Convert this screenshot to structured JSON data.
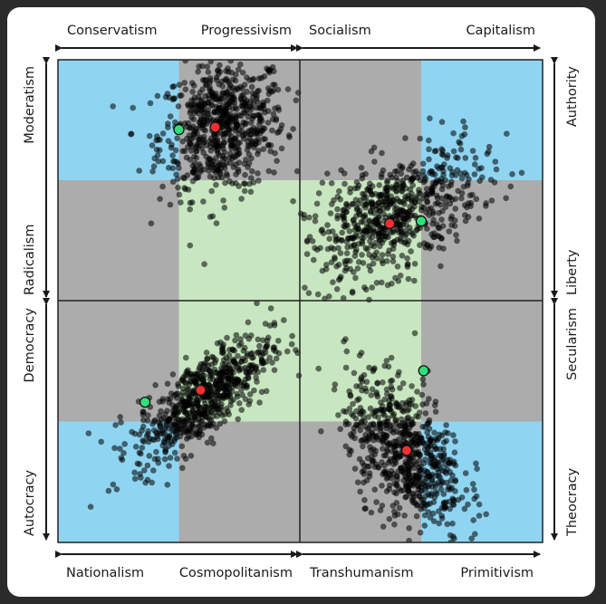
{
  "chart_data": {
    "type": "scatter",
    "title": "",
    "axes": {
      "top_left": [
        "Conservatism",
        "Progressivism"
      ],
      "top_right": [
        "Socialism",
        "Capitalism"
      ],
      "bottom_left": [
        "Nationalism",
        "Cosmopolitanism"
      ],
      "bottom_right": [
        "Transhumanism",
        "Primitivism"
      ],
      "left_top": [
        "Moderatism",
        "Radicalism"
      ],
      "left_bottom": [
        "Democracy",
        "Autocracy"
      ],
      "right_top": [
        "Authority",
        "Liberty"
      ],
      "right_bottom": [
        "Secularism",
        "Theocracy"
      ]
    },
    "domain": [
      0,
      1
    ],
    "grid": "quadrants split at 0.5; inner thirds shaded",
    "colors": {
      "blue": "#8fd5f2",
      "gray": "#acacac",
      "green": "#c8e6c0",
      "point": "#000000",
      "red": "#ef3030",
      "lime": "#2fe07a"
    },
    "panels": [
      {
        "name": "Conservatism–Progressivism vs Moderatism–Radicalism",
        "series": "points",
        "n_points": 700,
        "mean": [
          0.68,
          0.72
        ],
        "spread": [
          0.13,
          0.14
        ],
        "red_point": [
          0.65,
          0.72
        ],
        "green_point": [
          0.5,
          0.71
        ]
      },
      {
        "name": "Socialism–Capitalism vs Authority–Liberty",
        "series": "points",
        "n_points": 700,
        "mean": [
          0.38,
          0.35
        ],
        "spread": [
          0.18,
          0.14
        ],
        "red_point": [
          0.37,
          0.32
        ],
        "green_point": [
          0.5,
          0.33
        ]
      },
      {
        "name": "Nationalism–Cosmopolitanism vs Democracy–Autocracy",
        "series": "points",
        "n_points": 700,
        "mean": [
          0.6,
          0.6
        ],
        "spread": [
          0.14,
          0.13
        ],
        "red_point": [
          0.59,
          0.63
        ],
        "green_point": [
          0.36,
          0.58
        ]
      },
      {
        "name": "Transhumanism–Primitivism vs Secularism–Theocracy",
        "series": "points",
        "n_points": 700,
        "mean": [
          0.43,
          0.38
        ],
        "spread": [
          0.12,
          0.16
        ],
        "red_point": [
          0.44,
          0.38
        ],
        "green_point": [
          0.51,
          0.71
        ]
      }
    ]
  }
}
